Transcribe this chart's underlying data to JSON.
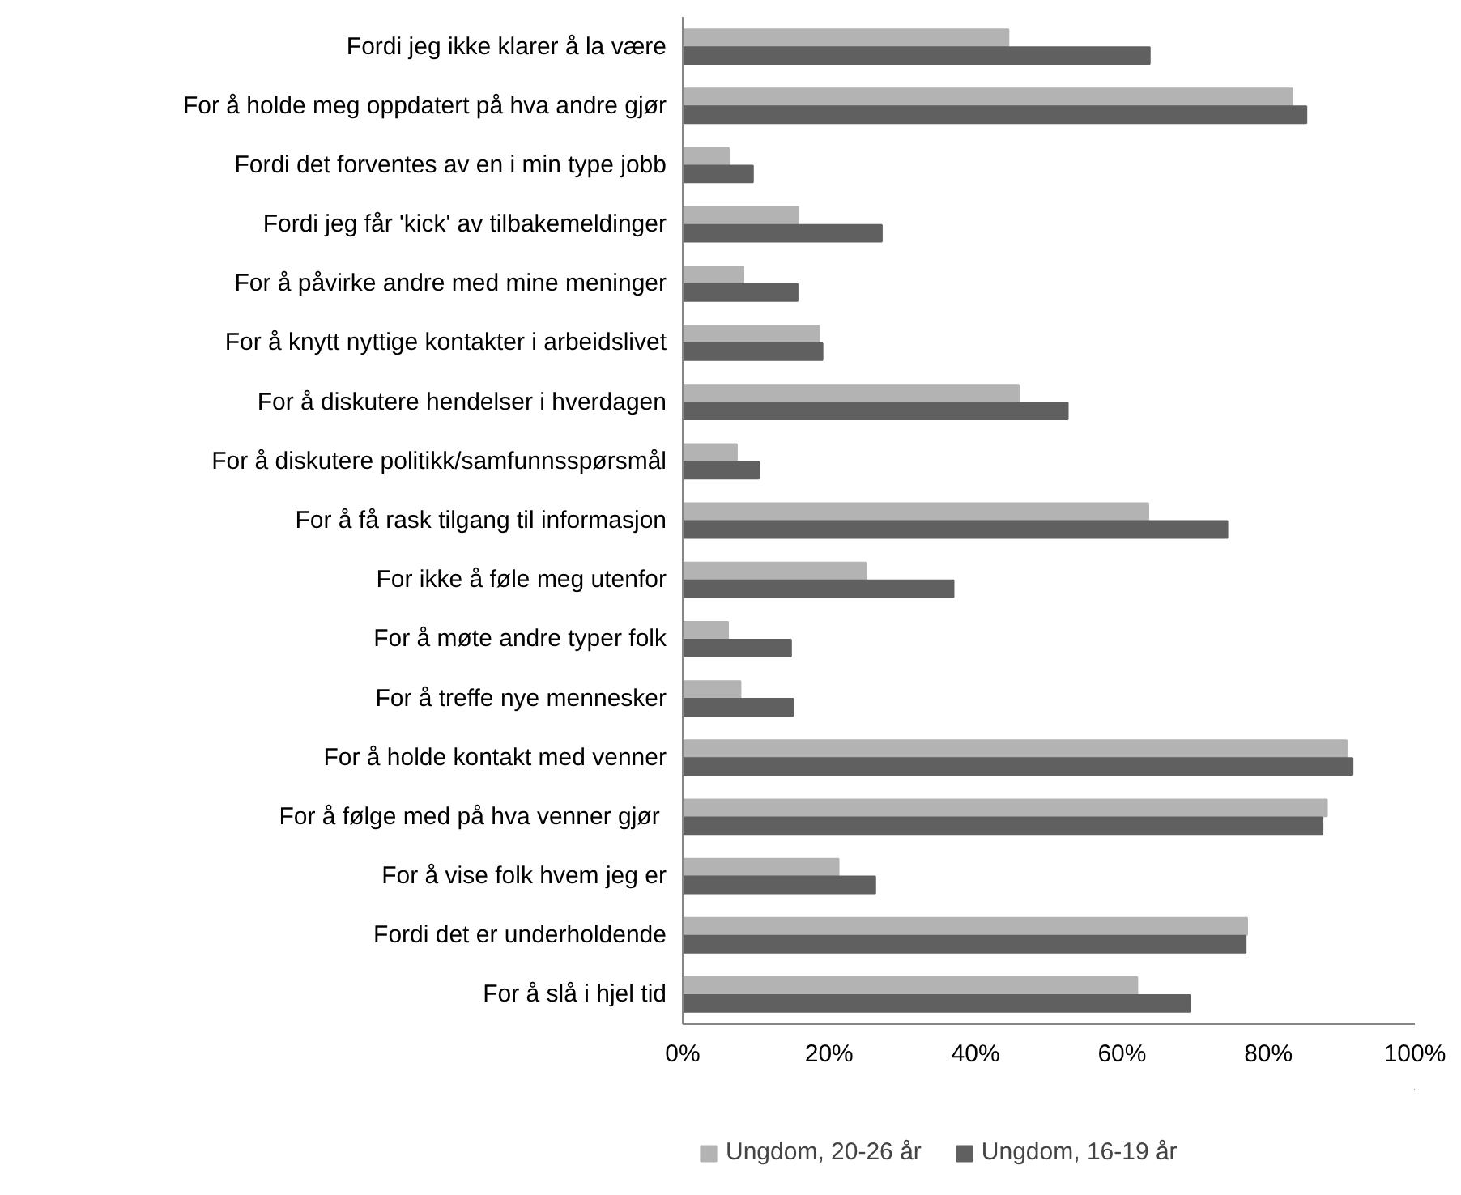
{
  "chart_data": {
    "type": "bar",
    "orientation": "horizontal",
    "categories": [
      "Fordi jeg ikke klarer å la være",
      "For å holde meg oppdatert på hva andre gjør",
      "Fordi det forventes av en i min type jobb",
      "Fordi jeg får 'kick' av tilbakemeldinger",
      "For å påvirke andre med mine meninger",
      "For å knytt nyttige kontakter i arbeidslivet",
      "For å diskutere hendelser i hverdagen",
      "For å diskutere politikk/samfunnsspørsmål",
      "For å få rask tilgang til informasjon",
      "For ikke å føle meg utenfor",
      "For å møte andre typer folk",
      "For å treffe nye mennesker",
      "For å holde kontakt med venner",
      "For å følge med på hva venner  gjør",
      "For å vise folk hvem jeg er",
      "Fordi det er underholdende",
      "For å slå i hjel tid"
    ],
    "series": [
      {
        "name": "Ungdom, 20-26 år",
        "color": "#b3b3b3",
        "values": [
          44.5,
          83.3,
          6.3,
          15.8,
          8.3,
          18.6,
          45.9,
          7.4,
          63.6,
          25.0,
          6.2,
          7.9,
          90.7,
          88.0,
          21.3,
          77.1,
          62.1
        ]
      },
      {
        "name": "Ungdom, 16-19 år",
        "color": "#606060",
        "values": [
          63.8,
          85.2,
          9.6,
          27.2,
          15.7,
          19.1,
          52.6,
          10.4,
          74.4,
          37.0,
          14.8,
          15.1,
          91.5,
          87.4,
          26.3,
          76.9,
          69.3
        ]
      }
    ],
    "xlim": [
      0,
      100
    ],
    "xticks": [
      {
        "value": 0,
        "label": "0%"
      },
      {
        "value": 20,
        "label": "20%"
      },
      {
        "value": 40,
        "label": "40%"
      },
      {
        "value": 60,
        "label": "60%"
      },
      {
        "value": 80,
        "label": "80%"
      },
      {
        "value": 100,
        "label": "100%"
      }
    ],
    "grid": false,
    "legend": "bottom"
  }
}
